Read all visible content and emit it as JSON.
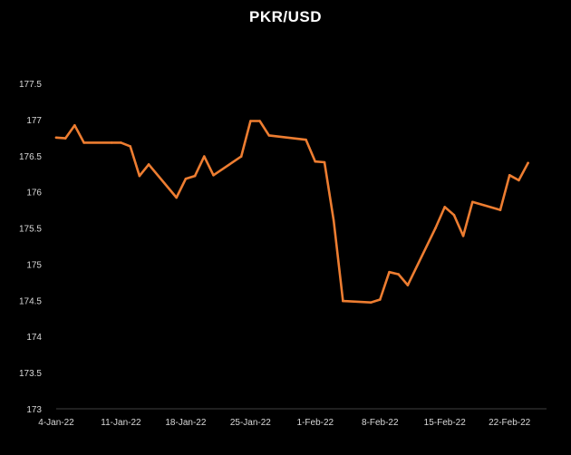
{
  "chart_data": {
    "type": "line",
    "title": "PKR/USD",
    "xlabel": "",
    "ylabel": "",
    "ylim": [
      173,
      177.5
    ],
    "yticks": [
      173,
      173.5,
      174,
      174.5,
      175,
      175.5,
      176,
      176.5,
      177,
      177.5
    ],
    "ytick_labels": [
      "173",
      "173.5",
      "174",
      "174.5",
      "175",
      "175.5",
      "176",
      "176.5",
      "177",
      "177.5"
    ],
    "xlim": [
      "2022-01-04",
      "2022-02-26"
    ],
    "xticks": [
      "2022-01-04",
      "2022-01-11",
      "2022-01-18",
      "2022-01-25",
      "2022-02-01",
      "2022-02-08",
      "2022-02-15",
      "2022-02-22"
    ],
    "xtick_labels": [
      "4-Jan-22",
      "11-Jan-22",
      "18-Jan-22",
      "25-Jan-22",
      "1-Feb-22",
      "8-Feb-22",
      "15-Feb-22",
      "22-Feb-22"
    ],
    "grid": false,
    "legend": "none",
    "line_color": "#ed7d31",
    "axis_color": "#404040",
    "text_color": "#d9d9d9",
    "background": "#000000",
    "series": [
      {
        "x": [
          "2022-01-04",
          "2022-01-05",
          "2022-01-06",
          "2022-01-07",
          "2022-01-10",
          "2022-01-11",
          "2022-01-12",
          "2022-01-13",
          "2022-01-14",
          "2022-01-17",
          "2022-01-18",
          "2022-01-19",
          "2022-01-20",
          "2022-01-21",
          "2022-01-24",
          "2022-01-25",
          "2022-01-26",
          "2022-01-27",
          "2022-01-31",
          "2022-02-01",
          "2022-02-02",
          "2022-02-03",
          "2022-02-04",
          "2022-02-07",
          "2022-02-08",
          "2022-02-09",
          "2022-02-10",
          "2022-02-11",
          "2022-02-14",
          "2022-02-15",
          "2022-02-16",
          "2022-02-17",
          "2022-02-18",
          "2022-02-21",
          "2022-02-22",
          "2022-02-23",
          "2022-02-24"
        ],
        "values": [
          176.75,
          176.74,
          176.92,
          176.68,
          176.68,
          176.68,
          176.63,
          176.22,
          176.38,
          175.92,
          176.18,
          176.22,
          176.49,
          176.23,
          176.49,
          176.98,
          176.98,
          176.78,
          176.72,
          176.42,
          176.41,
          175.6,
          174.49,
          174.47,
          174.51,
          174.89,
          174.86,
          174.71,
          175.5,
          175.79,
          175.68,
          175.39,
          175.86,
          175.75,
          176.23,
          176.16,
          176.4
        ]
      }
    ]
  }
}
